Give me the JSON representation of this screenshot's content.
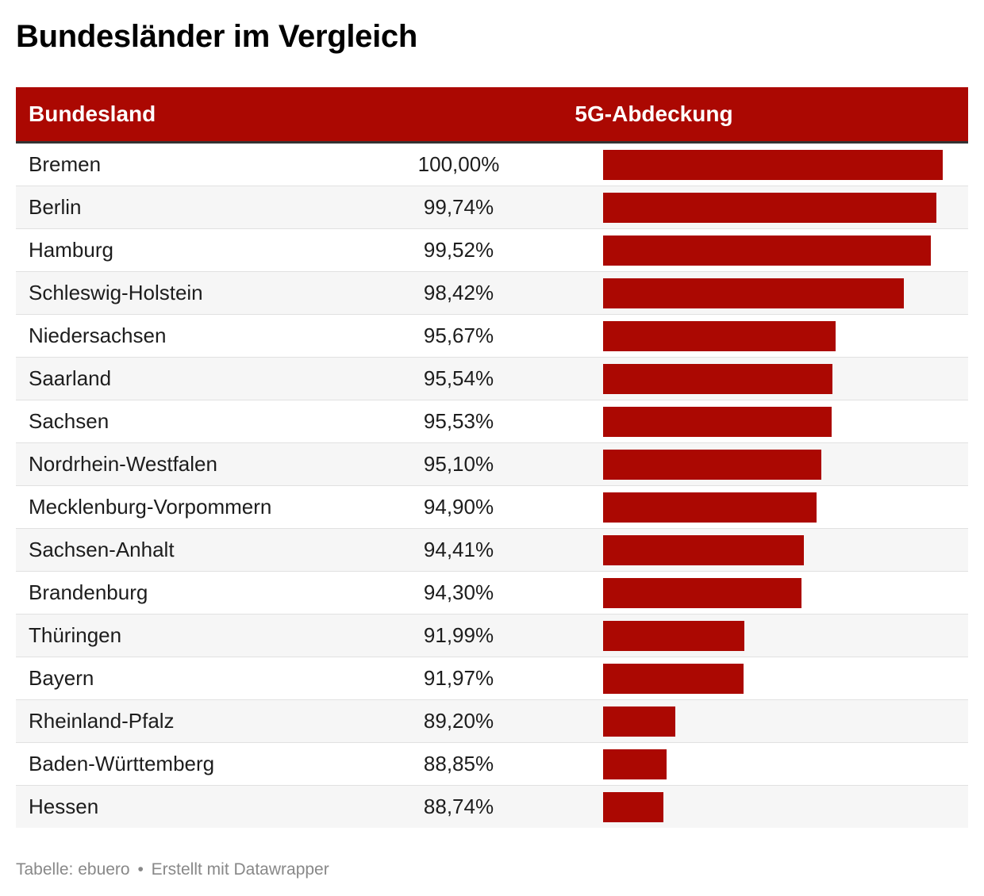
{
  "title": "Bundesländer im Vergleich",
  "colors": {
    "accent": "#ab0802",
    "row_alt": "#f6f6f6",
    "text": "#1d1d1d",
    "footer": "#888888"
  },
  "table": {
    "headers": [
      "Bundesland",
      "5G-Abdeckung"
    ],
    "rows": [
      {
        "name": "Bremen",
        "value_label": "100,00%",
        "value": 100.0
      },
      {
        "name": "Berlin",
        "value_label": "99,74%",
        "value": 99.74
      },
      {
        "name": "Hamburg",
        "value_label": "99,52%",
        "value": 99.52
      },
      {
        "name": "Schleswig-Holstein",
        "value_label": "98,42%",
        "value": 98.42
      },
      {
        "name": "Niedersachsen",
        "value_label": "95,67%",
        "value": 95.67
      },
      {
        "name": "Saarland",
        "value_label": "95,54%",
        "value": 95.54
      },
      {
        "name": "Sachsen",
        "value_label": "95,53%",
        "value": 95.53
      },
      {
        "name": "Nordrhein-Westfalen",
        "value_label": "95,10%",
        "value": 95.1
      },
      {
        "name": "Mecklenburg-Vorpommern",
        "value_label": "94,90%",
        "value": 94.9
      },
      {
        "name": "Sachsen-Anhalt",
        "value_label": "94,41%",
        "value": 94.41
      },
      {
        "name": "Brandenburg",
        "value_label": "94,30%",
        "value": 94.3
      },
      {
        "name": "Thüringen",
        "value_label": "91,99%",
        "value": 91.99
      },
      {
        "name": "Bayern",
        "value_label": "91,97%",
        "value": 91.97
      },
      {
        "name": "Rheinland-Pfalz",
        "value_label": "89,20%",
        "value": 89.2
      },
      {
        "name": "Baden-Württemberg",
        "value_label": "88,85%",
        "value": 88.85
      },
      {
        "name": "Hessen",
        "value_label": "88,74%",
        "value": 88.74
      }
    ]
  },
  "chart_data": {
    "type": "table",
    "title": "Bundesländer im Vergleich",
    "columns": [
      "Bundesland",
      "5G-Abdeckung"
    ],
    "categories": [
      "Bremen",
      "Berlin",
      "Hamburg",
      "Schleswig-Holstein",
      "Niedersachsen",
      "Saarland",
      "Sachsen",
      "Nordrhein-Westfalen",
      "Mecklenburg-Vorpommern",
      "Sachsen-Anhalt",
      "Brandenburg",
      "Thüringen",
      "Bayern",
      "Rheinland-Pfalz",
      "Baden-Württemberg",
      "Hessen"
    ],
    "values": [
      100.0,
      99.74,
      99.52,
      98.42,
      95.67,
      95.54,
      95.53,
      95.1,
      94.9,
      94.41,
      94.3,
      91.99,
      91.97,
      89.2,
      88.85,
      88.74
    ],
    "unit": "%",
    "bar_range": [
      86.3,
      100
    ]
  },
  "footer": {
    "source_label": "Tabelle: ebuero",
    "separator": "•",
    "credit": "Erstellt mit Datawrapper"
  }
}
